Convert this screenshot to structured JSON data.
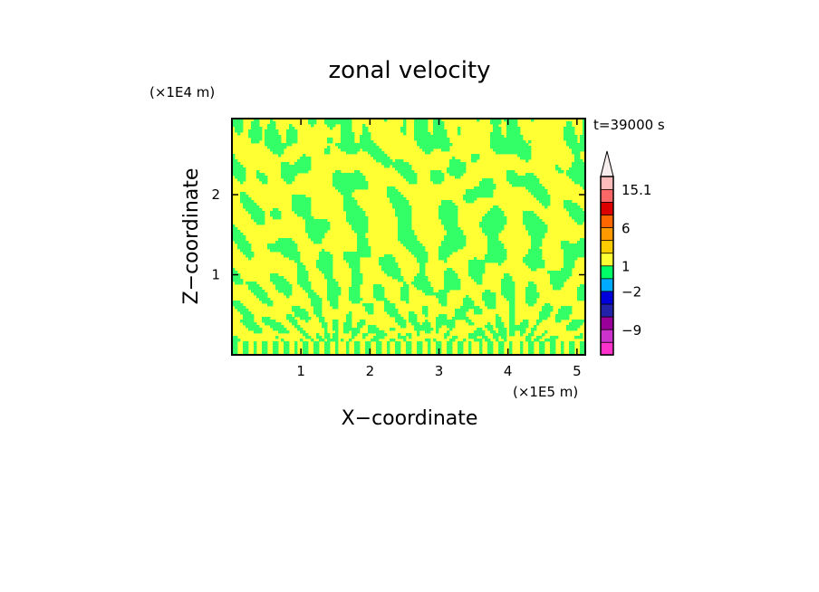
{
  "chart_data": {
    "type": "heatmap",
    "title": "zonal velocity",
    "xlabel": "X−coordinate",
    "ylabel": "Z−coordinate",
    "x_unit": "(×1E5 m)",
    "y_unit": "(×1E4 m)",
    "time_label": "t=39000 s",
    "xlim": [
      0,
      5.12
    ],
    "ylim": [
      0,
      2.95
    ],
    "x_ticks": [
      1,
      2,
      3,
      4,
      5
    ],
    "y_ticks": [
      1,
      2
    ],
    "colorbar": {
      "levels": [
        {
          "color": "#ff33cc"
        },
        {
          "color": "#cc33cc"
        },
        {
          "color": "#990099"
        },
        {
          "color": "#2222aa"
        },
        {
          "color": "#0000dd"
        },
        {
          "color": "#00aaff"
        },
        {
          "color": "#00ff66"
        },
        {
          "color": "#ffff33"
        },
        {
          "color": "#ffcc00"
        },
        {
          "color": "#ff9900"
        },
        {
          "color": "#ff6600"
        },
        {
          "color": "#dd0000"
        },
        {
          "color": "#ff6666"
        },
        {
          "color": "#ffbbbb"
        },
        {
          "color": "#f8eeee"
        }
      ],
      "labels": [
        "15.1",
        "6",
        "1",
        "−2",
        "−9"
      ]
    },
    "dominant_colors": {
      "positive_small": "#ffff33",
      "near_zero": "#33ff66"
    }
  }
}
